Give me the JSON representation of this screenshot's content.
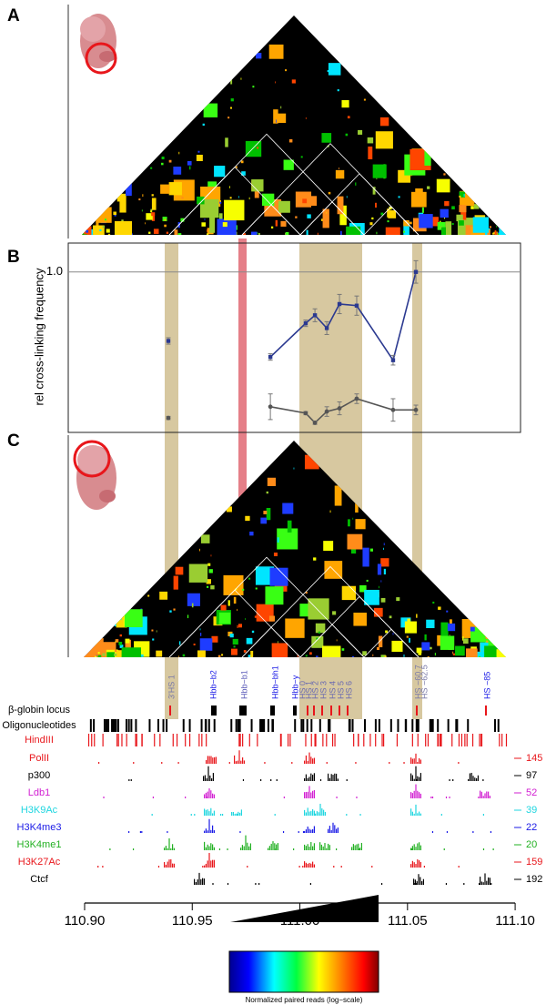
{
  "panel_labels": [
    "A",
    "B",
    "C"
  ],
  "chart_data": {
    "type": "line",
    "ylabel": "rel cross-linking frequency",
    "x": [
      110.9389,
      110.9731,
      110.9863,
      111.0027,
      111.007,
      111.0125,
      111.0184,
      111.0264,
      111.0433,
      111.0539
    ],
    "xlim": [
      110.8924,
      111.1025
    ],
    "xticks": [
      {
        "value": 110.9,
        "label": "110.90"
      },
      {
        "value": 110.95,
        "label": "110.95"
      },
      {
        "value": 111.0,
        "label": "111.00"
      },
      {
        "value": 111.05,
        "label": "111.05"
      },
      {
        "value": 111.1,
        "label": "111.10"
      }
    ],
    "ylim": [
      0,
      1.18
    ],
    "yticks": [
      {
        "value": 1.0,
        "label": "1.0"
      }
    ],
    "series": [
      {
        "color": "#2b3990",
        "values": [
          0.57,
          null,
          0.47,
          0.68,
          0.73,
          0.65,
          0.8,
          0.79,
          0.45,
          1.0
        ],
        "errors": [
          0.02,
          null,
          0.02,
          0.02,
          0.04,
          0.04,
          0.06,
          0.06,
          0.03,
          0.07
        ]
      },
      {
        "color": "#555555",
        "values": [
          0.09,
          null,
          0.16,
          0.12,
          0.06,
          0.13,
          0.15,
          0.21,
          0.14,
          0.14
        ],
        "errors": [
          0.01,
          null,
          0.08,
          0.01,
          0.01,
          0.03,
          0.04,
          0.03,
          0.07,
          0.03
        ]
      }
    ]
  },
  "locus_labels": [
    "3'HS 1",
    "Hbb−b2",
    "Hbb−b1",
    "Hbb−bh1",
    "Hbb−y",
    "HS 0",
    "HS 1",
    "HS 2",
    "HS 3",
    "HS 4",
    "HS 5",
    "HS 6",
    "HS −60.7",
    "HS −62.5",
    "HS −85"
  ],
  "tracks": [
    {
      "name": "β-globin locus",
      "color": "#000000"
    },
    {
      "name": "Oligonucleotides",
      "color": "#000000"
    },
    {
      "name": "HindIII",
      "color": "#e8161b"
    },
    {
      "name": "PolII",
      "color": "#e8161b",
      "max": 145
    },
    {
      "name": "p300",
      "color": "#000000",
      "max": 97
    },
    {
      "name": "Ldb1",
      "color": "#d21fd2",
      "max": 52
    },
    {
      "name": "H3K9Ac",
      "color": "#1fd6e0",
      "max": 39
    },
    {
      "name": "H3K4me3",
      "color": "#1a1ae6",
      "max": 22
    },
    {
      "name": "H3K4me1",
      "color": "#21b021",
      "max": 20
    },
    {
      "name": "H3K27Ac",
      "color": "#e8161b",
      "max": 159
    },
    {
      "name": "Ctcf",
      "color": "#000000",
      "max": 192
    }
  ],
  "colorbar_label": "Normalized paired reads (log−scale)"
}
